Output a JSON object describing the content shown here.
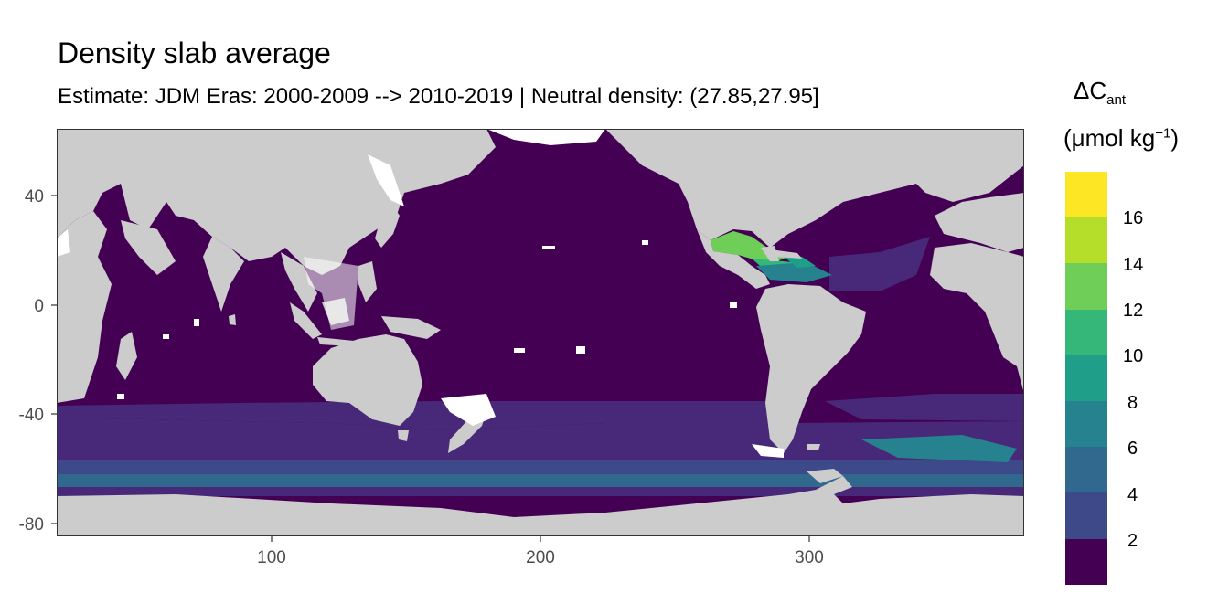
{
  "title": "Density slab average",
  "subtitle": "Estimate: JDM Eras: 2000-2009 --> 2010-2019 | Neutral density: (27.85,27.95]",
  "legend": {
    "symbol": "ΔC",
    "subscript": "ant",
    "unit_open": "(μmol kg",
    "unit_sup": "−1",
    "unit_close": ")",
    "ticks": [
      "16",
      "14",
      "12",
      "10",
      "8",
      "6",
      "4",
      "2"
    ],
    "colors": [
      "#fde725",
      "#b5de2b",
      "#6ece58",
      "#35b779",
      "#1f9e89",
      "#26828e",
      "#31688e",
      "#3e4989",
      "#482878",
      "#440154"
    ]
  },
  "map": {
    "x_axis": {
      "ticks": [
        "100",
        "200",
        "300"
      ]
    },
    "y_axis": {
      "ticks": [
        "40",
        "0",
        "-40",
        "-80"
      ]
    },
    "land_color": "#cccccc",
    "ocean_base_color": "#440154"
  },
  "chart_data": {
    "type": "heatmap",
    "title": "Density slab average",
    "subtitle": "Estimate: JDM Eras: 2000-2009 --> 2010-2019 | Neutral density: (27.85,27.95]",
    "xlim": [
      20,
      380
    ],
    "ylim": [
      -85,
      65
    ],
    "x_ticks": [
      100,
      200,
      300
    ],
    "y_ticks": [
      40,
      0,
      -40,
      -80
    ],
    "color_scale": "viridis",
    "color_breaks": [
      2,
      4,
      6,
      8,
      10,
      12,
      14,
      16
    ],
    "legend_title": "ΔCant (μmol kg−1)"
  }
}
